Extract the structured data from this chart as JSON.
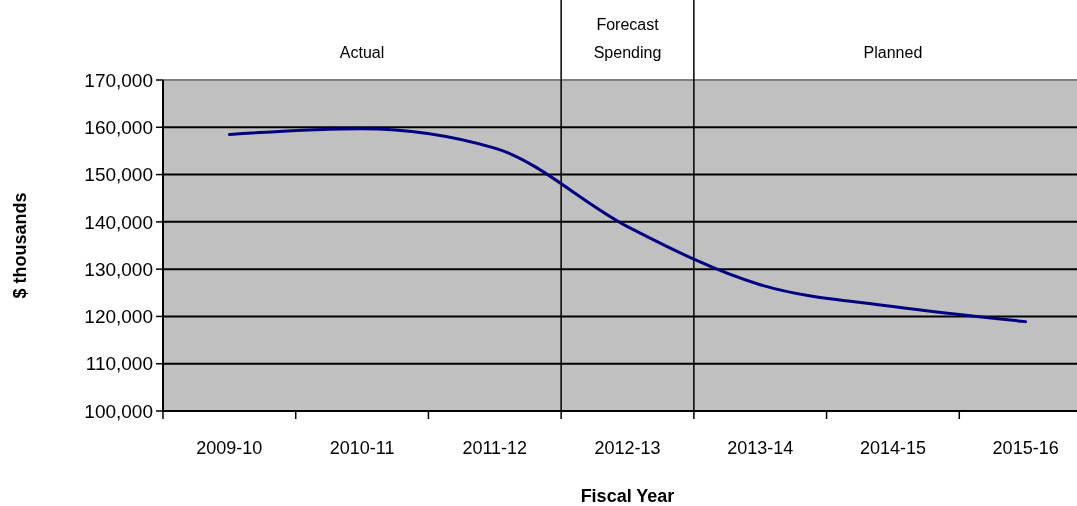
{
  "chart_data": {
    "type": "line",
    "xlabel": "Fiscal Year",
    "ylabel": "$ thousands",
    "categories": [
      "2009-10",
      "2010-11",
      "2011-12",
      "2012-13",
      "2013-14",
      "2014-15",
      "2015-16"
    ],
    "series": [
      {
        "color": "#000080",
        "values": [
          158500,
          159700,
          155600,
          139000,
          126700,
          122100,
          118900
        ]
      }
    ],
    "ylim": [
      100000,
      170000
    ],
    "yticks": [
      {
        "value": 100000,
        "label": "100,000"
      },
      {
        "value": 110000,
        "label": "110,000"
      },
      {
        "value": 120000,
        "label": "120,000"
      },
      {
        "value": 130000,
        "label": "130,000"
      },
      {
        "value": 140000,
        "label": "140,000"
      },
      {
        "value": 150000,
        "label": "150,000"
      },
      {
        "value": 160000,
        "label": "160,000"
      },
      {
        "value": 170000,
        "label": "170,000"
      }
    ],
    "grid": "y",
    "marker": "none",
    "line_style": "solid",
    "annotations": [
      "Actual",
      "Forecast Spending",
      "Planned"
    ]
  }
}
